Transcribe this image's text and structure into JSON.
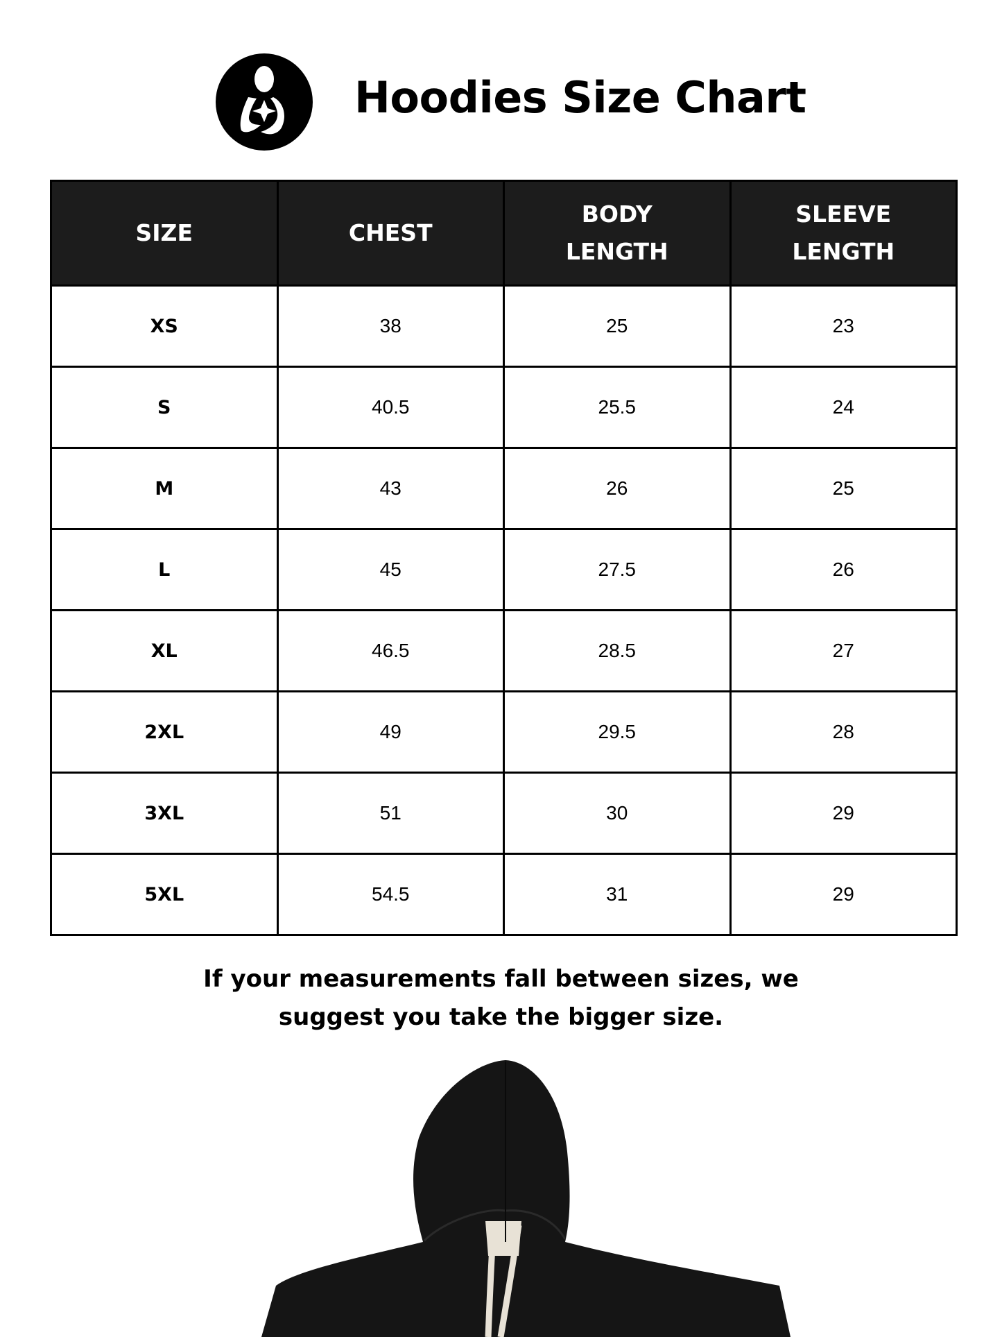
{
  "header": {
    "title": "Hoodies Size Chart",
    "logo_icon": "mother-holding-baby-icon"
  },
  "table": {
    "columns": [
      [
        "SIZE"
      ],
      [
        "CHEST"
      ],
      [
        "BODY",
        "LENGTH"
      ],
      [
        "SLEEVE",
        "LENGTH"
      ]
    ],
    "rows": [
      [
        "XS",
        "38",
        "25",
        "23"
      ],
      [
        "S",
        "40.5",
        "25.5",
        "24"
      ],
      [
        "M",
        "43",
        "26",
        "25"
      ],
      [
        "L",
        "45",
        "27.5",
        "26"
      ],
      [
        "XL",
        "46.5",
        "28.5",
        "27"
      ],
      [
        "2XL",
        "49",
        "29.5",
        "28"
      ],
      [
        "3XL",
        "51",
        "30",
        "29"
      ],
      [
        "5XL",
        "54.5",
        "31",
        "29"
      ]
    ]
  },
  "note": {
    "line1": "If your measurements fall between sizes, we",
    "line2": "suggest you take the bigger size."
  },
  "colors": {
    "header_bg": "#1c1c1c",
    "hoodie": "#151515",
    "drawstring": "#e8e2d6"
  }
}
